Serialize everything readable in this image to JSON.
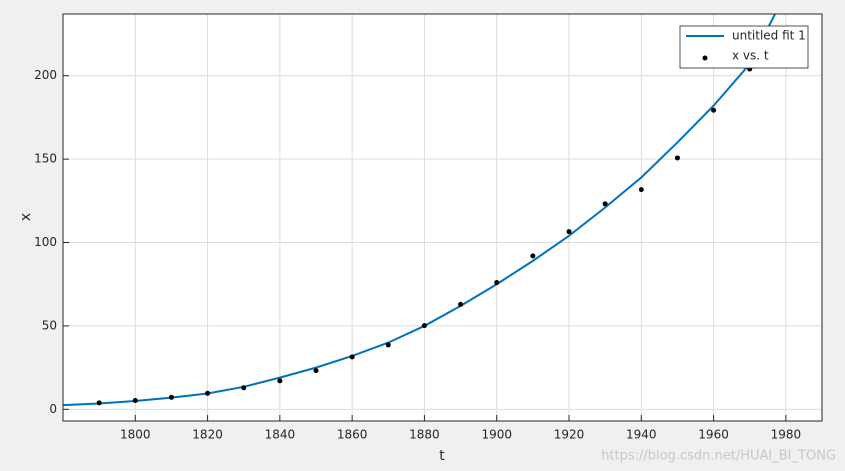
{
  "chart_data": {
    "type": "scatter",
    "xlabel": "t",
    "ylabel": "x",
    "xlim": [
      1780,
      1990
    ],
    "ylim": [
      -7,
      237
    ],
    "xticks": [
      1800,
      1820,
      1840,
      1860,
      1880,
      1900,
      1920,
      1940,
      1960,
      1980
    ],
    "yticks": [
      0,
      50,
      100,
      150,
      200
    ],
    "grid": true,
    "legend": "top-right",
    "series": [
      {
        "name": "untitled fit 1",
        "type": "line",
        "color": "#0072bd",
        "x": [
          1780,
          1790,
          1800,
          1810,
          1820,
          1830,
          1840,
          1850,
          1860,
          1870,
          1880,
          1890,
          1900,
          1910,
          1920,
          1930,
          1940,
          1950,
          1960,
          1970,
          1977
        ],
        "values": [
          2.5,
          3.5,
          5,
          7,
          9.5,
          13.5,
          19,
          25,
          32,
          40,
          50,
          62,
          75,
          89,
          104,
          121,
          139,
          160,
          182,
          207,
          237
        ]
      },
      {
        "name": "x vs. t",
        "type": "scatter",
        "color": "#000000",
        "x": [
          1790,
          1800,
          1810,
          1820,
          1830,
          1840,
          1850,
          1860,
          1870,
          1880,
          1890,
          1900,
          1910,
          1920,
          1930,
          1940,
          1950,
          1960,
          1970
        ],
        "values": [
          3.9,
          5.3,
          7.2,
          9.6,
          12.9,
          17.1,
          23.2,
          31.4,
          38.6,
          50.2,
          62.9,
          76.0,
          92.0,
          106.5,
          123.2,
          131.7,
          150.7,
          179.3,
          204.0
        ]
      }
    ]
  },
  "watermark": "https://blog.csdn.net/HUAI_BI_TONG"
}
